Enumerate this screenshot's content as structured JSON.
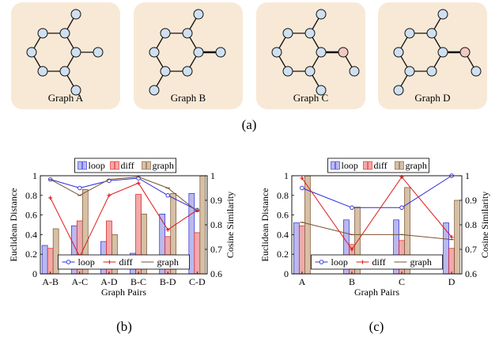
{
  "colors": {
    "card_bg": "#f8e9d6",
    "node_fill": "#cfe0f0",
    "node_highlight": "#f2c9c2",
    "edge": "#111111",
    "loop": "#2b2bd9",
    "diff": "#e01919",
    "graph": "#7b5230",
    "loop_bar_fill": "#b9b9ef",
    "diff_bar_fill": "#f2a9a9",
    "graph_bar_fill": "#d6c0a6"
  },
  "panel_a": {
    "caption": "(a)",
    "graphs": [
      {
        "label": "Graph A",
        "highlight": false
      },
      {
        "label": "Graph B",
        "highlight": false
      },
      {
        "label": "Graph C",
        "highlight": true
      },
      {
        "label": "Graph D",
        "highlight": true
      }
    ]
  },
  "chart_data": [
    {
      "id": "b",
      "type": "bar",
      "caption": "(b)",
      "xlabel": "Graph Pairs",
      "ylabel": "Euclidean Distance",
      "y2label": "Cosine Similarity",
      "ylim": [
        0,
        1
      ],
      "y2lim": [
        0.6,
        1
      ],
      "yticks": [
        "0",
        "0.2",
        "0.4",
        "0.6",
        "0.8",
        "1"
      ],
      "y2ticks": [
        "0.6",
        "0.7",
        "0.8",
        "0.9",
        "1"
      ],
      "categories": [
        "A-B",
        "A-C",
        "A-D",
        "B-C",
        "B-D",
        "C-D"
      ],
      "bar_legend": [
        "loop",
        "diff",
        "graph"
      ],
      "line_legend": [
        "loop",
        "diff",
        "graph"
      ],
      "bars": [
        {
          "name": "loop",
          "values": [
            0.29,
            0.49,
            0.33,
            0.21,
            0.61,
            0.82
          ]
        },
        {
          "name": "diff",
          "values": [
            0.26,
            0.54,
            0.54,
            0.81,
            0.38,
            0.42
          ]
        },
        {
          "name": "graph",
          "values": [
            0.46,
            0.86,
            0.4,
            0.61,
            0.82,
            1.0
          ]
        }
      ],
      "lines": [
        {
          "name": "loop",
          "values": [
            0.985,
            0.95,
            0.98,
            0.99,
            0.92,
            0.86
          ]
        },
        {
          "name": "diff",
          "values": [
            0.91,
            0.67,
            0.92,
            0.97,
            0.78,
            0.86
          ]
        },
        {
          "name": "graph",
          "values": [
            0.985,
            0.92,
            0.985,
            0.995,
            0.95,
            0.855
          ]
        }
      ]
    },
    {
      "id": "c",
      "type": "bar",
      "caption": "(c)",
      "xlabel": "Graph Pairs",
      "ylabel": "Euclidean Distance",
      "y2label": "Cosine Similarity",
      "ylim": [
        0,
        1
      ],
      "y2lim": [
        0.6,
        1
      ],
      "yticks": [
        "0",
        "0.2",
        "0.4",
        "0.6",
        "0.8",
        "1"
      ],
      "y2ticks": [
        "0.6",
        "0.7",
        "0.8",
        "0.9",
        "1"
      ],
      "categories": [
        "A",
        "B",
        "C",
        "D"
      ],
      "bar_legend": [
        "loop",
        "diff",
        "graph"
      ],
      "line_legend": [
        "loop",
        "diff",
        "graph"
      ],
      "bars": [
        {
          "name": "loop",
          "values": [
            0.52,
            0.55,
            0.55,
            0.52
          ]
        },
        {
          "name": "diff",
          "values": [
            0.49,
            0.3,
            0.34,
            0.26
          ]
        },
        {
          "name": "graph",
          "values": [
            1.0,
            0.68,
            0.88,
            0.75
          ]
        }
      ],
      "lines": [
        {
          "name": "loop",
          "values": [
            0.95,
            0.87,
            0.87,
            1.0
          ]
        },
        {
          "name": "diff",
          "values": [
            0.99,
            0.7,
            0.995,
            0.75
          ]
        },
        {
          "name": "graph",
          "values": [
            0.81,
            0.76,
            0.76,
            0.74
          ]
        }
      ]
    }
  ]
}
